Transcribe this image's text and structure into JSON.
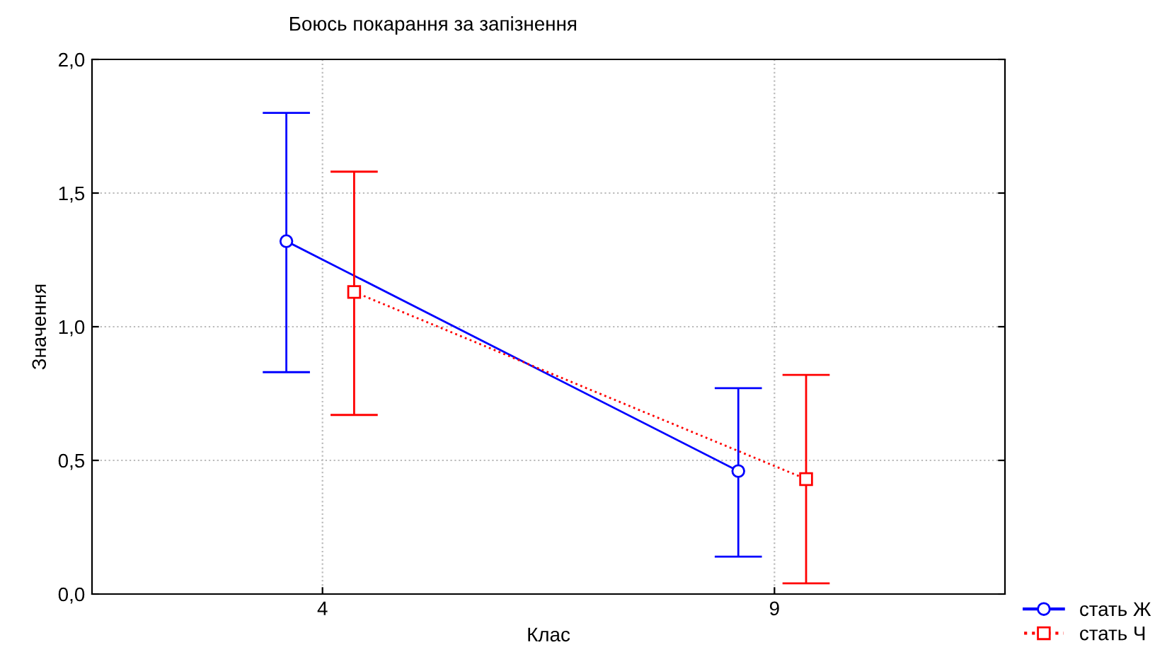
{
  "chart_data": {
    "type": "line",
    "title": "Боюсь покарання за запізнення",
    "xlabel": "Клас",
    "ylabel": "Значення",
    "categories": [
      "4",
      "9"
    ],
    "ylim": [
      0,
      2
    ],
    "yticks": [
      {
        "value": 0,
        "label": "0,0"
      },
      {
        "value": 0.5,
        "label": "0,5"
      },
      {
        "value": 1,
        "label": "1,0"
      },
      {
        "value": 1.5,
        "label": "1,5"
      },
      {
        "value": 2,
        "label": "2,0"
      }
    ],
    "grid": true,
    "legend": "bottom right",
    "series": [
      {
        "name": "стать Ж",
        "color": "#0000ff",
        "values": [
          1.32,
          0.46
        ],
        "errors": [
          [
            0.83,
            1.8
          ],
          [
            0.14,
            0.77
          ]
        ],
        "marker": "circle",
        "line_style": "solid"
      },
      {
        "name": "стать Ч",
        "color": "#ff0000",
        "values": [
          1.13,
          0.43
        ],
        "errors": [
          [
            0.67,
            1.58
          ],
          [
            0.04,
            0.82
          ]
        ],
        "marker": "square",
        "line_style": "dotted"
      }
    ]
  }
}
